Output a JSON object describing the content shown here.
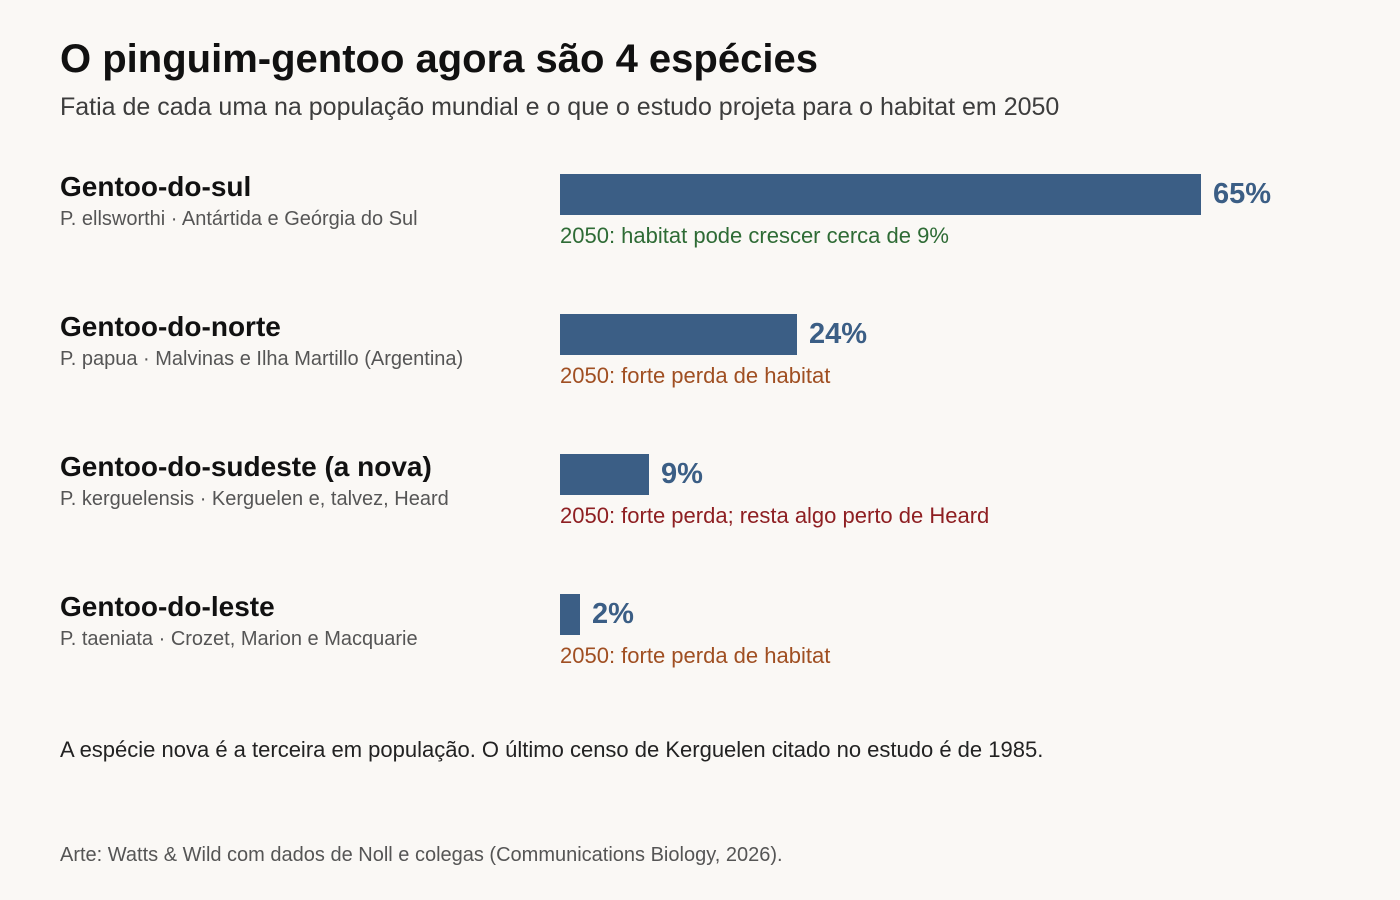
{
  "title": "O pinguim-gentoo agora são 4 espécies",
  "subtitle": "Fatia de cada uma na população mundial e o que o estudo projeta para o habitat em 2050",
  "chart_data": {
    "type": "bar",
    "orientation": "horizontal",
    "unit": "%",
    "xlim": [
      0,
      65
    ],
    "categories": [
      "Gentoo-do-sul",
      "Gentoo-do-norte",
      "Gentoo-do-sudeste (a nova)",
      "Gentoo-do-leste"
    ],
    "values": [
      65,
      24,
      9,
      2
    ],
    "items": [
      {
        "name": "Gentoo-do-sul",
        "scientific": "P. ellsworthi · Antártida e Geórgia do Sul",
        "value": 65,
        "value_label": "65%",
        "note": "2050: habitat pode crescer cerca de 9%",
        "note_color": "#2e6b35"
      },
      {
        "name": "Gentoo-do-norte",
        "scientific": "P. papua · Malvinas e Ilha Martillo (Argentina)",
        "value": 24,
        "value_label": "24%",
        "note": "2050: forte perda de habitat",
        "note_color": "#a04f22"
      },
      {
        "name": "Gentoo-do-sudeste (a nova)",
        "scientific": "P. kerguelensis · Kerguelen e, talvez, Heard",
        "value": 9,
        "value_label": "9%",
        "note": "2050: forte perda; resta algo perto de Heard",
        "note_color": "#8e1f22"
      },
      {
        "name": "Gentoo-do-leste",
        "scientific": "P. taeniata · Crozet, Marion e Macquarie",
        "value": 2,
        "value_label": "2%",
        "note": "2050: forte perda de habitat",
        "note_color": "#a04f22"
      }
    ]
  },
  "footnote": "A espécie nova é a terceira em população. O último censo de Kerguelen citado no estudo é de 1985.",
  "source": "Arte: Watts & Wild com dados de Noll e colegas (Communications Biology, 2026).",
  "colors": {
    "background": "#faf8f5",
    "bar": "#3b5e85",
    "text": "#111111",
    "muted": "#555555"
  }
}
